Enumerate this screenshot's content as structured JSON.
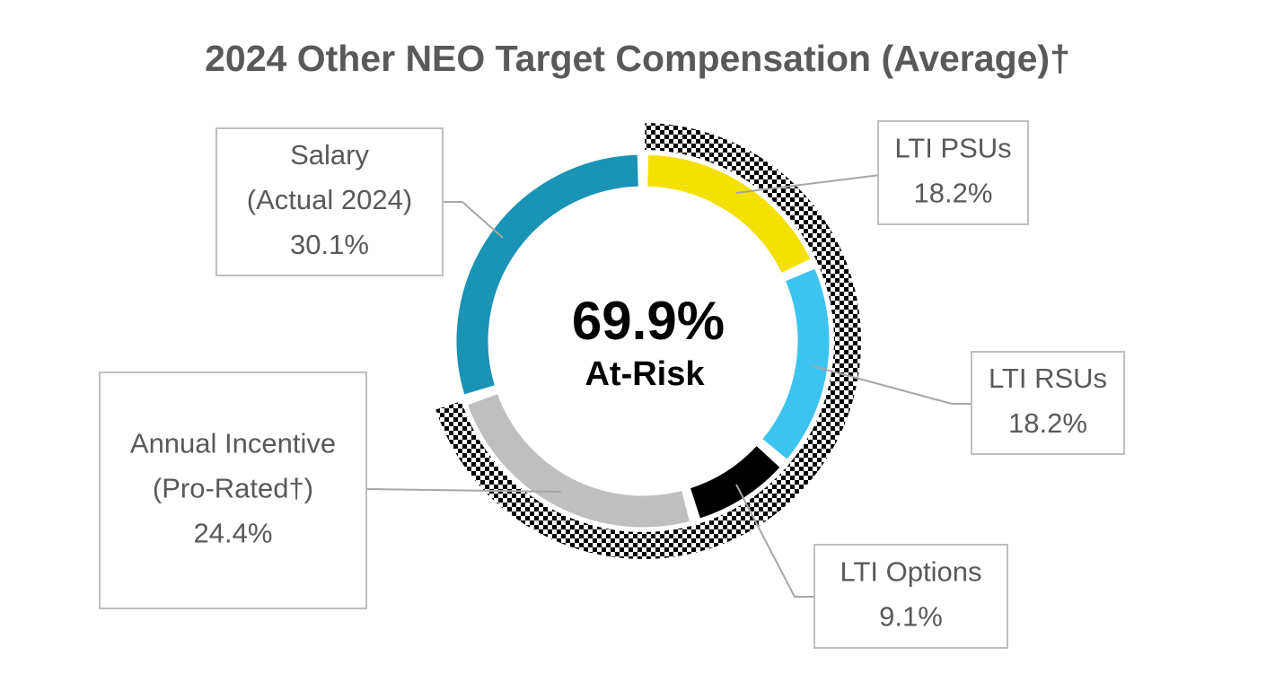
{
  "chart_data": {
    "type": "donut",
    "title": "2024 Other NEO Target Compensation (Average)†",
    "categories": [
      [
        "LTI PSUs"
      ],
      [
        "LTI RSUs"
      ],
      [
        "LTI Options"
      ],
      [
        "Annual Incentive",
        "(Pro-Rated†)"
      ],
      [
        "Salary",
        "(Actual 2024)"
      ]
    ],
    "values": [
      18.2,
      18.2,
      9.1,
      24.4,
      30.1
    ],
    "value_labels": [
      "18.2%",
      "18.2%",
      "9.1%",
      "24.4%",
      "30.1%"
    ],
    "colors": [
      "#f5e100",
      "#3cc3ef",
      "#000000",
      "#bfbfbf",
      "#1a93b5"
    ],
    "at_risk": {
      "value": 69.9,
      "label": "69.9%",
      "text": "At-Risk"
    }
  }
}
